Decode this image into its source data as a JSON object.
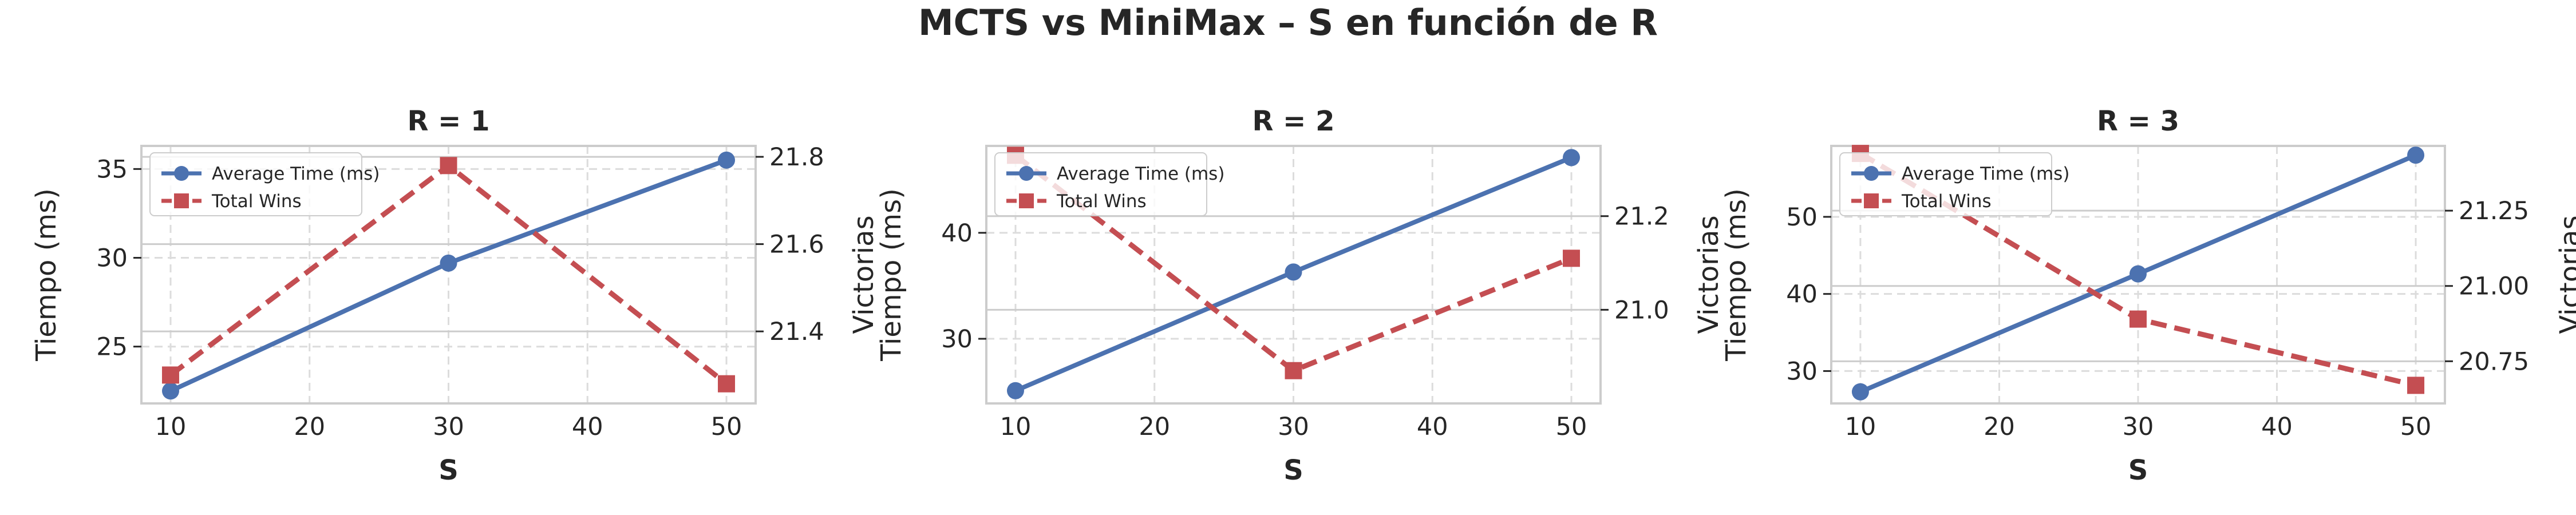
{
  "figure": {
    "title": "MCTS vs MiniMax – S en función de R"
  },
  "colors": {
    "time_series": "#4c72b0",
    "wins_series": "#c44e52",
    "grid": "#dcdcdc",
    "hgrid": "#cccccc",
    "spine": "#cccccc",
    "background": "#ffffff"
  },
  "chart_data": [
    {
      "type": "line",
      "title": "R = 1",
      "xlabel": "S",
      "ylabel": "Tiempo (ms)",
      "ylabel_right": "Victorias",
      "grid": true,
      "legend_position": "upper-left",
      "x": [
        10,
        30,
        50
      ],
      "xlim": [
        7.9,
        52.1
      ],
      "xticks": [
        10,
        20,
        30,
        40,
        50
      ],
      "ylim": [
        21.8,
        36.3
      ],
      "yticks": [
        25,
        30,
        35
      ],
      "ylim_right": [
        21.235,
        21.825
      ],
      "yticks_right": [
        21.4,
        21.6,
        21.8
      ],
      "series": [
        {
          "name": "Average Time (ms)",
          "axis": "left",
          "style": "solid",
          "marker": "circle",
          "values": [
            22.5,
            29.7,
            35.5
          ]
        },
        {
          "name": "Total Wins",
          "axis": "right",
          "style": "dashed",
          "marker": "square",
          "values": [
            21.3,
            21.78,
            21.28
          ]
        }
      ]
    },
    {
      "type": "line",
      "title": "R = 2",
      "xlabel": "S",
      "ylabel": "Tiempo (ms)",
      "ylabel_right": "Victorias",
      "grid": true,
      "legend_position": "upper-left",
      "x": [
        10,
        30,
        50
      ],
      "xlim": [
        7.9,
        52.1
      ],
      "xticks": [
        10,
        20,
        30,
        40,
        50
      ],
      "ylim": [
        23.9,
        48.2
      ],
      "yticks": [
        30,
        40
      ],
      "ylim_right": [
        20.8,
        21.35
      ],
      "yticks_right": [
        21.0,
        21.2
      ],
      "series": [
        {
          "name": "Average Time (ms)",
          "axis": "left",
          "style": "solid",
          "marker": "circle",
          "values": [
            25.1,
            36.3,
            47.1
          ]
        },
        {
          "name": "Total Wins",
          "axis": "right",
          "style": "dashed",
          "marker": "square",
          "values": [
            21.33,
            20.87,
            21.11
          ]
        }
      ]
    },
    {
      "type": "line",
      "title": "R = 3",
      "xlabel": "S",
      "ylabel": "Tiempo (ms)",
      "ylabel_right": "Victorias",
      "grid": true,
      "legend_position": "upper-left",
      "x": [
        10,
        30,
        50
      ],
      "xlim": [
        7.9,
        52.1
      ],
      "xticks": [
        10,
        20,
        30,
        40,
        50
      ],
      "ylim": [
        25.8,
        59.2
      ],
      "yticks": [
        30,
        40,
        50
      ],
      "ylim_right": [
        20.61,
        21.465
      ],
      "yticks_right": [
        20.75,
        21.0,
        21.25
      ],
      "series": [
        {
          "name": "Average Time (ms)",
          "axis": "left",
          "style": "solid",
          "marker": "circle",
          "values": [
            27.3,
            42.6,
            58.0
          ]
        },
        {
          "name": "Total Wins",
          "axis": "right",
          "style": "dashed",
          "marker": "square",
          "values": [
            21.44,
            20.89,
            20.67
          ]
        }
      ]
    }
  ]
}
